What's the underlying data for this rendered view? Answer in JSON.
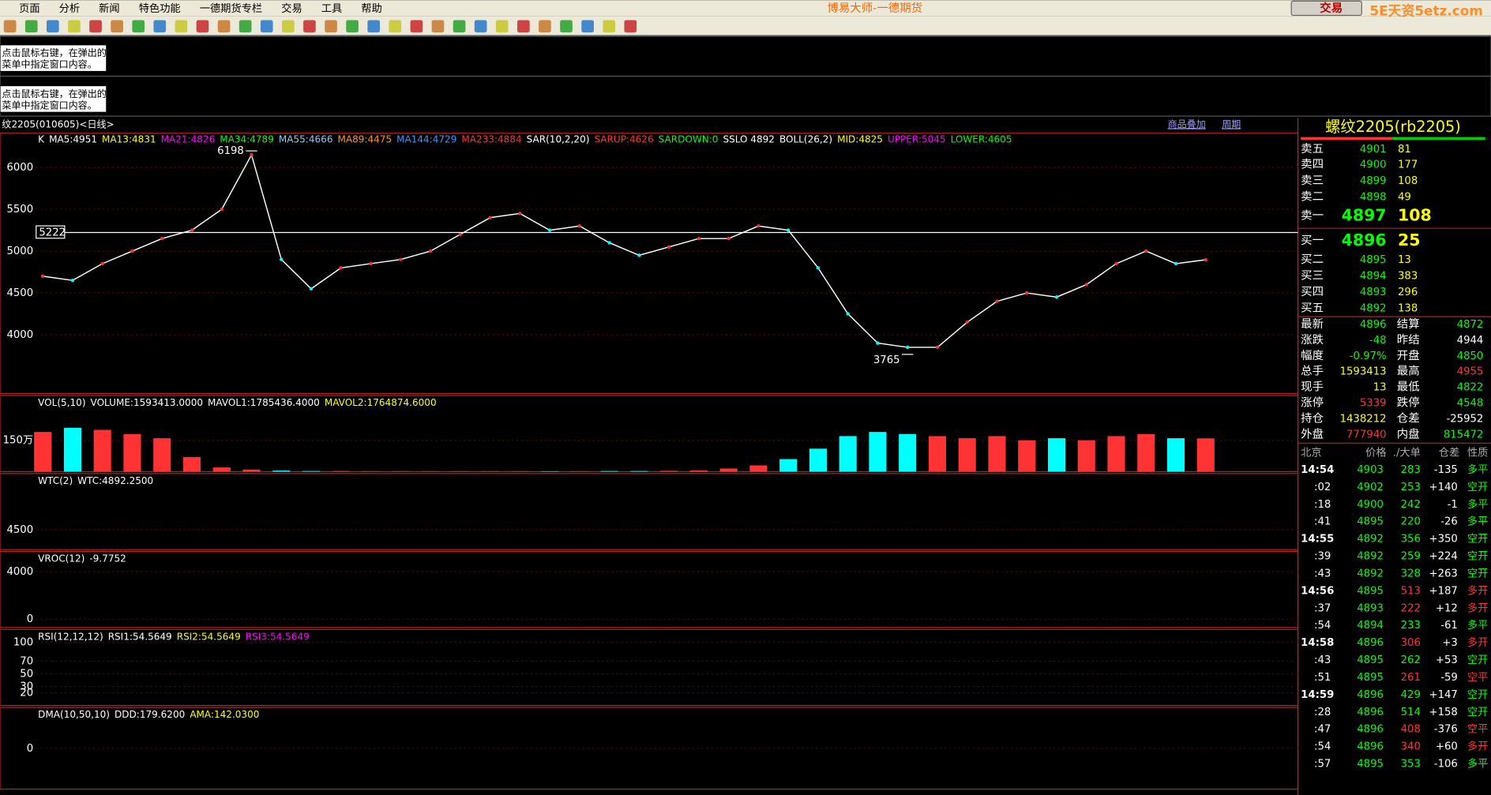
{
  "menu": [
    "页面",
    "分析",
    "新闻",
    "特色功能",
    "一德期货专栏",
    "交易",
    "工具",
    "帮助"
  ],
  "app_title": "博易大师-一德期货",
  "trade_button": "交易",
  "watermark": "5E天资5etz.com",
  "info_panels": [
    "点击鼠标右键，在弹出的",
    "菜单中指定窗口内容。"
  ],
  "chart_header": {
    "symbol": "纹2205(010605)<日线>",
    "links": [
      "商品叠加",
      "周期"
    ]
  },
  "main_chart": {
    "type": "candlestick-overview",
    "legend": [
      {
        "text": "K",
        "color": "#ffffff"
      },
      {
        "text": "MA5:4951",
        "color": "#ffffff"
      },
      {
        "text": "MA13:4831",
        "color": "#ffff00"
      },
      {
        "text": "MA21:4826",
        "color": "#ff00ff"
      },
      {
        "text": "MA34:4789",
        "color": "#00ff00"
      },
      {
        "text": "MA55:4666",
        "color": "#87cefa"
      },
      {
        "text": "MA89:4475",
        "color": "#ff9900"
      },
      {
        "text": "MA144:4729",
        "color": "#3399ff"
      },
      {
        "text": "MA233:4884",
        "color": "#ff3333"
      },
      {
        "text": "SAR(10,2,20)",
        "color": "#ffffff"
      },
      {
        "text": "SARUP:4626",
        "color": "#ff3333"
      },
      {
        "text": "SARDOWN:0",
        "color": "#00ff00"
      },
      {
        "text": "SSLO 4892",
        "color": "#ffffff"
      },
      {
        "text": "BOLL(26,2)",
        "color": "#ffffff"
      },
      {
        "text": "MID:4825",
        "color": "#ffff00"
      },
      {
        "text": "UPPER:5045",
        "color": "#ff00ff"
      },
      {
        "text": "LOWER:4605",
        "color": "#00ff00"
      }
    ],
    "ylim": [
      3295,
      6409
    ],
    "yticks": [
      4000,
      4500,
      5000,
      5500,
      6000
    ],
    "price_line": 5222,
    "high": 6198,
    "low": 3765,
    "close": [
      4700,
      4650,
      4850,
      5000,
      5150,
      5250,
      5500,
      6150,
      4900,
      4550,
      4800,
      4850,
      4900,
      5000,
      5200,
      5400,
      5450,
      5250,
      5300,
      5100,
      4950,
      5050,
      5150,
      5150,
      5300,
      5250,
      4800,
      4250,
      3900,
      3850,
      3850,
      4150,
      4400,
      4500,
      4450,
      4600,
      4850,
      5000,
      4850,
      4896
    ],
    "color": "#ffffff"
  },
  "panels": [
    {
      "title": "VOL(5,10)",
      "labels": [
        {
          "text": "VOLUME:1593413.0000",
          "color": "#ffffff"
        },
        {
          "text": "MAVOL1:1785436.4000",
          "color": "#ffffff"
        },
        {
          "text": "MAVOL2:1764874.6000",
          "color": "#ffff00"
        }
      ],
      "ylim": [
        0,
        3640000
      ],
      "yticks": [
        {
          "value": 1500000,
          "label": "150万"
        }
      ],
      "values": [
        1900000,
        2100000,
        2000000,
        1800000,
        1600000,
        700000,
        200000,
        100000,
        50000,
        30000,
        30000,
        20000,
        20000,
        20000,
        20000,
        20000,
        20000,
        20000,
        20000,
        30000,
        30000,
        40000,
        60000,
        150000,
        300000,
        600000,
        1100000,
        1700000,
        1900000,
        1800000,
        1700000,
        1600000,
        1700000,
        1500000,
        1600000,
        1500000,
        1700000,
        1800000,
        1600000,
        1593413
      ],
      "up_color": "#ff3333",
      "down_color": "#00ffff"
    },
    {
      "title": "WTC(2)",
      "labels": [
        {
          "text": "WTC:4892.2500",
          "color": "#ffffff"
        }
      ],
      "ylim": [
        3960,
        6030
      ],
      "yticks": [
        4500
      ]
    },
    {
      "title": "VROC(12)",
      "labels": [
        {
          "text": "-9.7752",
          "color": "#ffffff"
        }
      ],
      "ylim": [
        -720,
        5680
      ],
      "yticks": [
        4000,
        0
      ]
    },
    {
      "title": "RSI(12,12,12)",
      "labels": [
        {
          "text": "RSI1:54.5649",
          "color": "#ffffff"
        },
        {
          "text": "RSI2:54.5649",
          "color": "#ffff00"
        },
        {
          "text": "RSI3:54.5649",
          "color": "#ff00ff"
        }
      ],
      "ylim": [
        0,
        120
      ],
      "yticks": [
        100,
        70,
        50,
        30,
        20
      ]
    },
    {
      "title": "DMA(10,50,10)",
      "labels": [
        {
          "text": "DDD:179.6200",
          "color": "#ffffff"
        },
        {
          "text": "AMA:142.0300",
          "color": "#ffff00"
        }
      ],
      "ylim": [
        -400,
        400
      ],
      "yticks": [
        0
      ]
    }
  ],
  "quote": {
    "title": "螺纹2205(rb2205)",
    "asks": [
      [
        "卖五",
        "4901",
        "81"
      ],
      [
        "卖四",
        "4900",
        "177"
      ],
      [
        "卖三",
        "4899",
        "108"
      ],
      [
        "卖二",
        "4898",
        "49"
      ],
      [
        "卖一",
        "4897",
        "108"
      ]
    ],
    "bids": [
      [
        "买一",
        "4896",
        "25"
      ],
      [
        "买二",
        "4895",
        "13"
      ],
      [
        "买三",
        "4894",
        "383"
      ],
      [
        "买四",
        "4893",
        "296"
      ],
      [
        "买五",
        "4892",
        "138"
      ]
    ],
    "stats": [
      [
        {
          "label": "最新",
          "value": "4896",
          "color": "#00ff00"
        },
        {
          "label": "结算",
          "value": "4872",
          "color": "#00ff00"
        }
      ],
      [
        {
          "label": "涨跌",
          "value": "-48",
          "color": "#00ff00"
        },
        {
          "label": "昨结",
          "value": "4944",
          "color": "#ffffff"
        }
      ],
      [
        {
          "label": "幅度",
          "value": "-0.97%",
          "color": "#00ff00"
        },
        {
          "label": "开盘",
          "value": "4850",
          "color": "#00ff00"
        }
      ],
      [
        {
          "label": "总手",
          "value": "1593413",
          "color": "#ffff00"
        },
        {
          "label": "最高",
          "value": "4955",
          "color": "#ff3333"
        }
      ],
      [
        {
          "label": "现手",
          "value": "13",
          "color": "#ffff00"
        },
        {
          "label": "最低",
          "value": "4822",
          "color": "#00ff00"
        }
      ],
      [
        {
          "label": "涨停",
          "value": "5339",
          "color": "#ff3333"
        },
        {
          "label": "跌停",
          "value": "4548",
          "color": "#00ff00"
        }
      ],
      [
        {
          "label": "持仓",
          "value": "1438212",
          "color": "#ffff00"
        },
        {
          "label": "仓差",
          "value": "-25952",
          "color": "#ffffff"
        }
      ],
      [
        {
          "label": "外盘",
          "value": "777940",
          "color": "#ff3333"
        },
        {
          "label": "内盘",
          "value": "815472",
          "color": "#00ff00"
        }
      ]
    ],
    "trade_header": [
      "北京",
      "价格",
      "./大单",
      "仓差",
      "性质"
    ],
    "trades": [
      [
        "14:54",
        "4903",
        "283",
        "-135",
        "多平"
      ],
      [
        ":02",
        "4902",
        "253",
        "+140",
        "空开"
      ],
      [
        ":18",
        "4900",
        "242",
        "-1",
        "多平"
      ],
      [
        ":41",
        "4895",
        "220",
        "-26",
        "多平"
      ],
      [
        "14:55",
        "4892",
        "356",
        "+350",
        "空开"
      ],
      [
        ":39",
        "4892",
        "259",
        "+224",
        "空开"
      ],
      [
        ":43",
        "4892",
        "328",
        "+263",
        "空开"
      ],
      [
        "14:56",
        "4895",
        "513",
        "+187",
        "多开"
      ],
      [
        ":37",
        "4893",
        "222",
        "+12",
        "多开"
      ],
      [
        ":54",
        "4894",
        "233",
        "-61",
        "多平"
      ],
      [
        "14:58",
        "4896",
        "306",
        "+3",
        "多开"
      ],
      [
        ":43",
        "4895",
        "262",
        "+53",
        "空开"
      ],
      [
        ":51",
        "4895",
        "261",
        "-59",
        "空平"
      ],
      [
        "14:59",
        "4896",
        "429",
        "+147",
        "空开"
      ],
      [
        ":28",
        "4896",
        "514",
        "+158",
        "空开"
      ],
      [
        ":47",
        "4896",
        "408",
        "-376",
        "空平"
      ],
      [
        ":54",
        "4896",
        "340",
        "+60",
        "多开"
      ],
      [
        ":57",
        "4895",
        "353",
        "-106",
        "多平"
      ]
    ]
  }
}
